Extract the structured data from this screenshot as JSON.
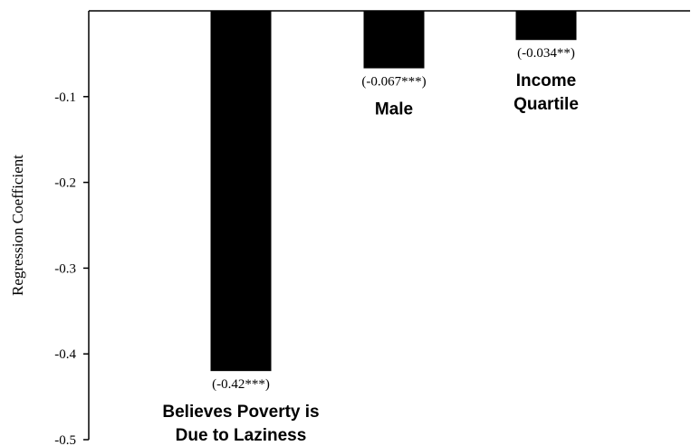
{
  "chart_data": {
    "type": "bar",
    "orientation": "vertical",
    "ylabel": "Regression Coefficient",
    "xlabel": "",
    "ylim": [
      -0.5,
      0
    ],
    "yticks": [
      -0.1,
      -0.2,
      -0.3,
      -0.4,
      -0.5
    ],
    "ytick_labels": [
      "-0.1",
      "-0.2",
      "-0.3",
      "-0.4",
      "-0.5"
    ],
    "grid": false,
    "bar_color": "#000000",
    "categories": [
      "Believes Poverty is Due to Laziness",
      "Male",
      "Income Quartile"
    ],
    "category_label_lines": [
      [
        "Believes Poverty is",
        "Due to Laziness"
      ],
      [
        "Male"
      ],
      [
        "Income",
        "Quartile"
      ]
    ],
    "values": [
      -0.42,
      -0.067,
      -0.034
    ],
    "value_labels": [
      "(-0.42***)",
      "(-0.067***)",
      "(-0.034**)"
    ]
  }
}
